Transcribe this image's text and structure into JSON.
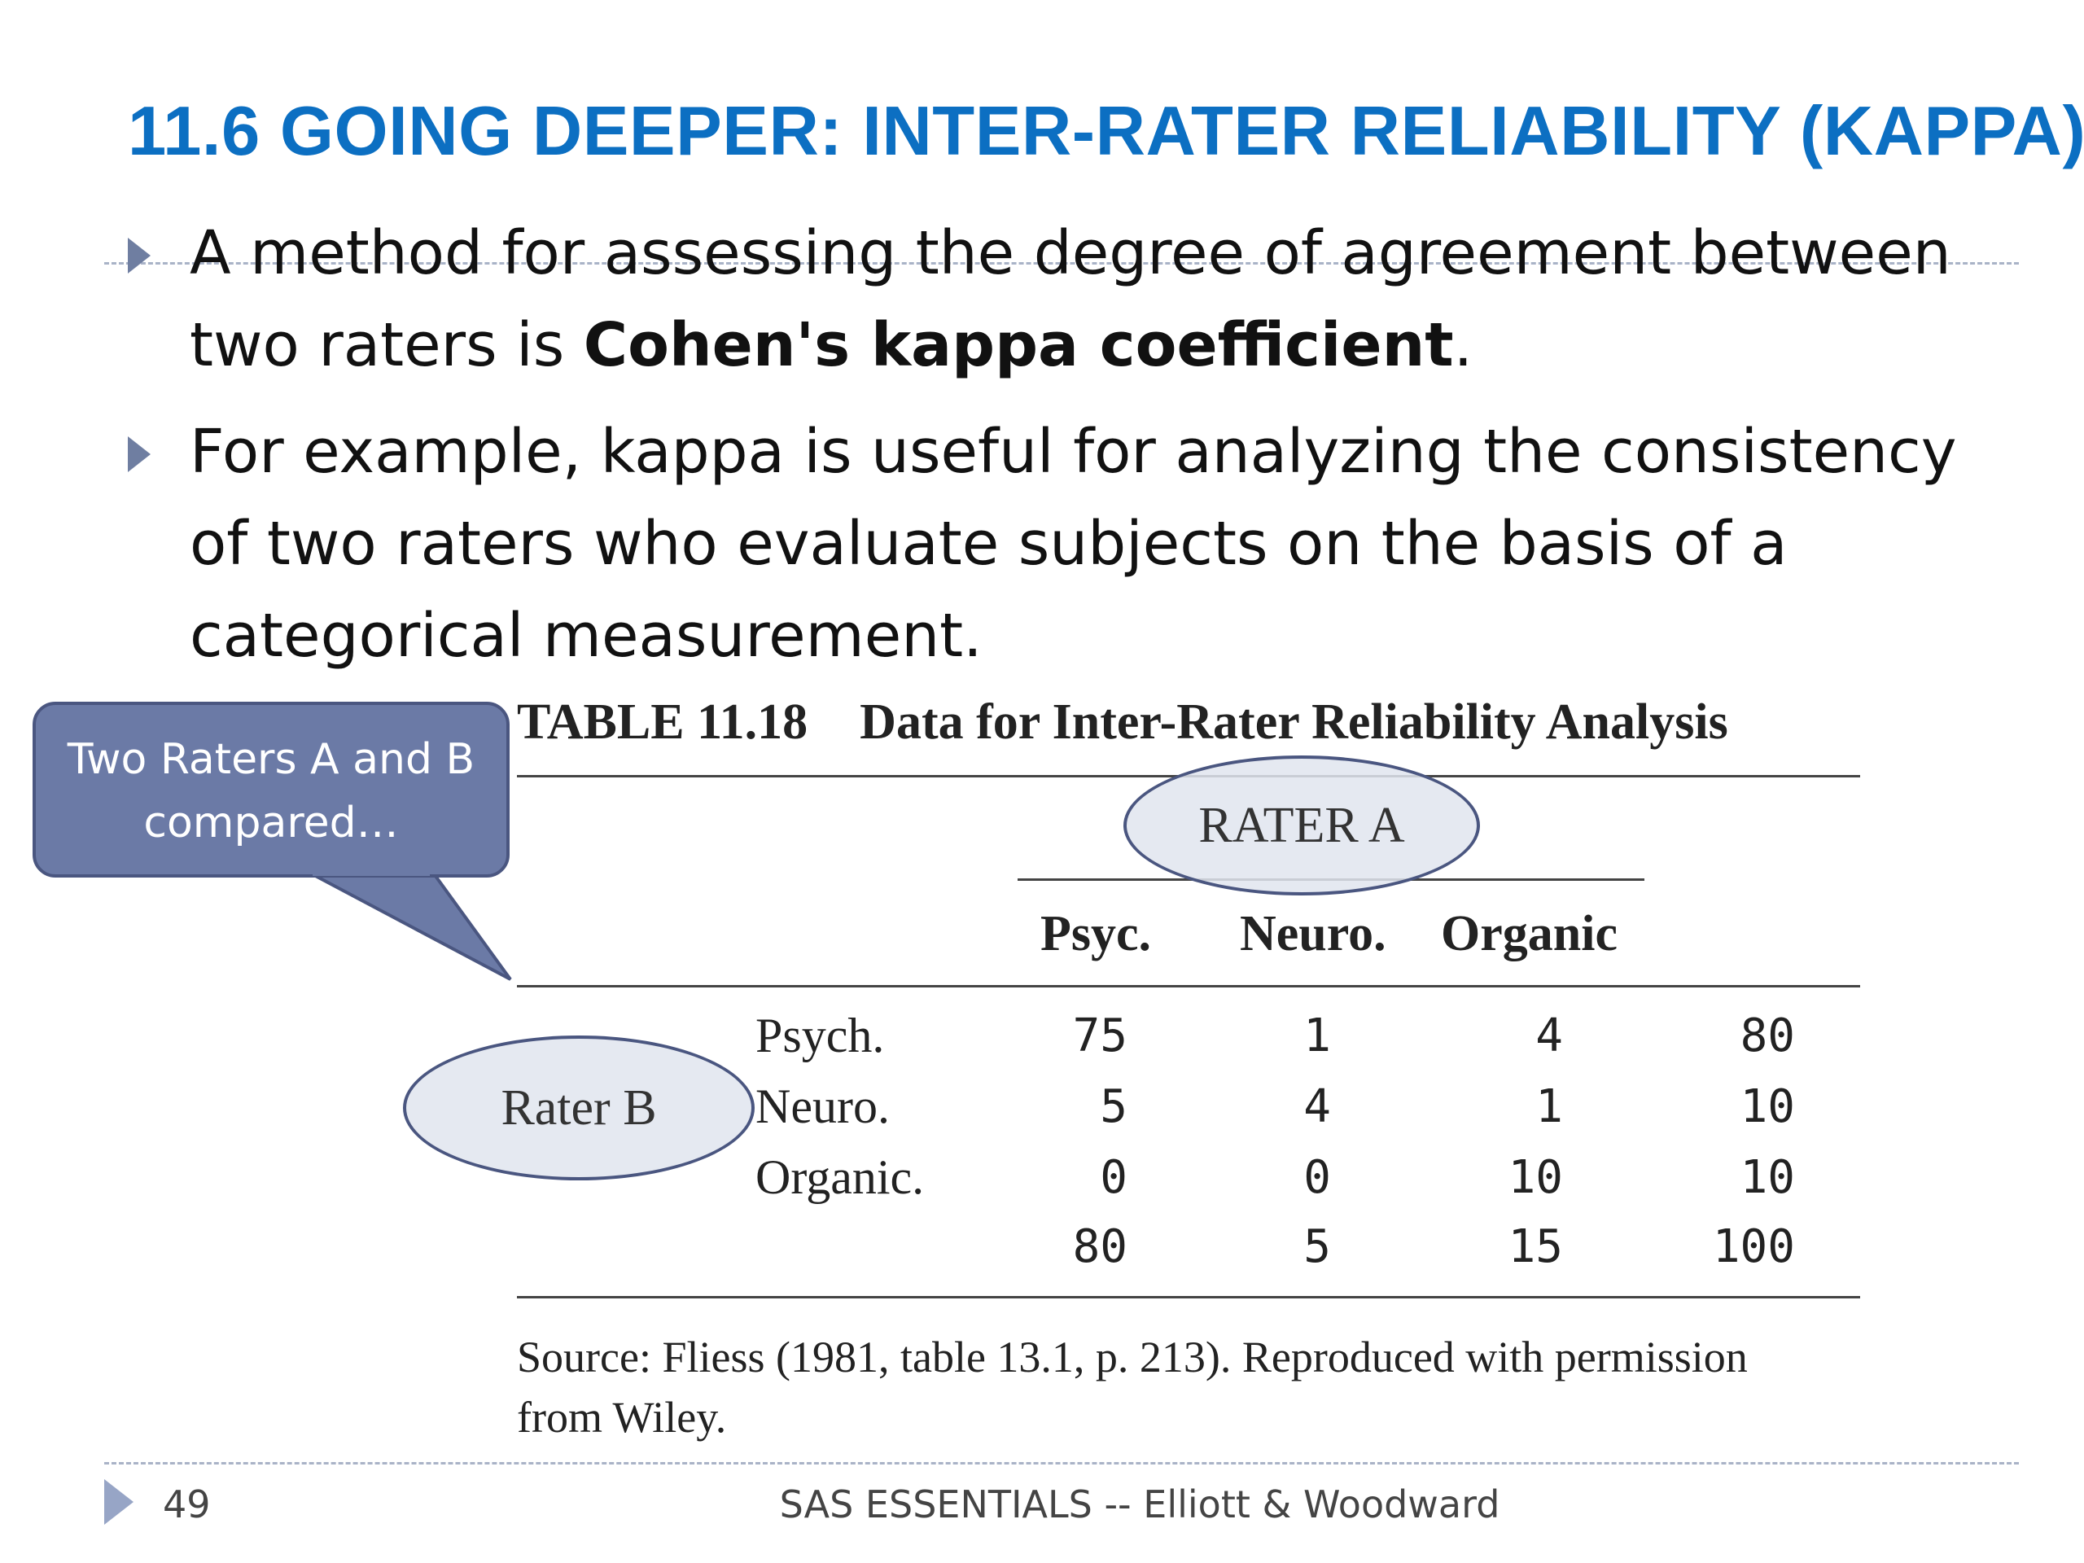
{
  "title": "11.6 GOING DEEPER: INTER-RATER RELIABILITY (KAPPA)",
  "bullets": [
    {
      "before": "A method for assessing the degree of agreement between two raters is ",
      "bold": "Cohen's kappa coefficient",
      "after": "."
    },
    {
      "before": "For example, kappa is useful for analyzing the consistency of two raters who evaluate subjects on the basis of a categorical measurement.",
      "bold": "",
      "after": ""
    }
  ],
  "callout": {
    "line1": "Two Raters A and B",
    "line2": "compared…"
  },
  "table": {
    "number": "TABLE 11.18",
    "caption": "Data for Inter-Rater Reliability Analysis",
    "rater_a_label": "RATER A",
    "rater_b_label": "Rater B",
    "columns": [
      "Psyc.",
      "Neuro.",
      "Organic"
    ],
    "rows": [
      {
        "label": "Psych.",
        "values": [
          "75",
          "1",
          "4"
        ],
        "total": "80"
      },
      {
        "label": "Neuro.",
        "values": [
          "5",
          "4",
          "1"
        ],
        "total": "10"
      },
      {
        "label": "Organic.",
        "values": [
          "0",
          "0",
          "10"
        ],
        "total": "10"
      }
    ],
    "column_totals": [
      "80",
      "5",
      "15"
    ],
    "grand_total": "100",
    "source_line1": "Source: Fliess (1981, table 13.1, p. 213). Reproduced with permission",
    "source_line2": "from Wiley."
  },
  "footer": {
    "page_number": "49",
    "text": "SAS ESSENTIALS -- Elliott & Woodward"
  },
  "colors": {
    "title": "#0c6fc2",
    "accent": "#6b7aa6",
    "bullet_arrow": "#6f7ea1"
  }
}
